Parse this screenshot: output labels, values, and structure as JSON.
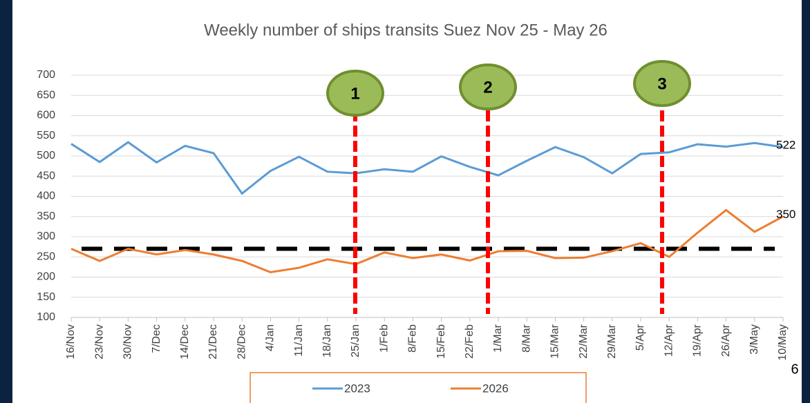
{
  "chart_data": {
    "type": "line",
    "title": "Weekly number of ships transits Suez Nov 25 - May 26",
    "categories": [
      "16/Nov",
      "23/Nov",
      "30/Nov",
      "7/Dec",
      "14/Dec",
      "21/Dec",
      "28/Dec",
      "4/Jan",
      "11/Jan",
      "18/Jan",
      "25/Jan",
      "1/Feb",
      "8/Feb",
      "15/Feb",
      "22/Feb",
      "1/Mar",
      "8/Mar",
      "15/Mar",
      "22/Mar",
      "29/Mar",
      "5/Apr",
      "12/Apr",
      "19/Apr",
      "26/Apr",
      "3/May",
      "10/May"
    ],
    "series": [
      {
        "name": "2023",
        "color": "#5b9bd5",
        "values": [
          530,
          485,
          534,
          484,
          525,
          507,
          407,
          463,
          498,
          461,
          457,
          467,
          461,
          499,
          473,
          452,
          488,
          522,
          497,
          457,
          505,
          509,
          529,
          523,
          532,
          522
        ]
      },
      {
        "name": "2026",
        "color": "#ed7d31",
        "values": [
          270,
          240,
          270,
          256,
          267,
          256,
          240,
          212,
          223,
          244,
          232,
          261,
          247,
          256,
          241,
          264,
          265,
          247,
          248,
          264,
          284,
          250,
          310,
          366,
          312,
          350
        ]
      }
    ],
    "reference_line": 270,
    "ylim": [
      100,
      700
    ],
    "yticks": [
      100,
      150,
      200,
      250,
      300,
      350,
      400,
      450,
      500,
      550,
      600,
      650,
      700
    ],
    "grid": true,
    "annotations": [
      "1",
      "2",
      "3"
    ],
    "page_number": "6"
  }
}
